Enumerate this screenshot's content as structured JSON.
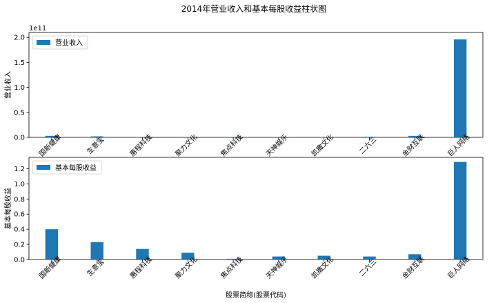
{
  "figure": {
    "title": "2014年营业收入和基本每股收益柱状图"
  },
  "colors": {
    "bar": "#1f77b4",
    "axis": "#000000"
  },
  "chart_data": [
    {
      "type": "bar",
      "title": "",
      "xlabel": "",
      "ylabel": "营业收入",
      "scale_note": "1e11",
      "ylim": [
        0,
        2.1
      ],
      "yticks": [
        "0.0",
        "0.5",
        "1.0",
        "1.5",
        "2.0"
      ],
      "legend": "upper-left",
      "categories": [
        "国新健康",
        "生意宝",
        "惠程科技",
        "聚力文化",
        "焦点科技",
        "天神娱乐",
        "凯撒文化",
        "二六三",
        "金财互联",
        "巨人网络"
      ],
      "series": [
        {
          "name": "营业收入",
          "values": [
            0.03,
            0.02,
            0.004,
            0.003,
            0.003,
            0.002,
            0.003,
            0.012,
            0.03,
            1.96
          ]
        }
      ]
    },
    {
      "type": "bar",
      "title": "",
      "xlabel": "股票简称(股票代码)",
      "ylabel": "基本每股收益",
      "ylim": [
        0,
        1.35
      ],
      "yticks": [
        "0.0",
        "0.2",
        "0.4",
        "0.6",
        "0.8",
        "1.0",
        "1.2"
      ],
      "legend": "upper-left",
      "categories": [
        "国新健康",
        "生意宝",
        "惠程科技",
        "聚力文化",
        "焦点科技",
        "天神娱乐",
        "凯撒文化",
        "二六三",
        "金财互联",
        "巨人网络"
      ],
      "series": [
        {
          "name": "基本每股收益",
          "values": [
            0.4,
            0.23,
            0.14,
            0.09,
            0.01,
            0.04,
            0.05,
            0.04,
            0.07,
            1.29
          ]
        }
      ]
    }
  ]
}
